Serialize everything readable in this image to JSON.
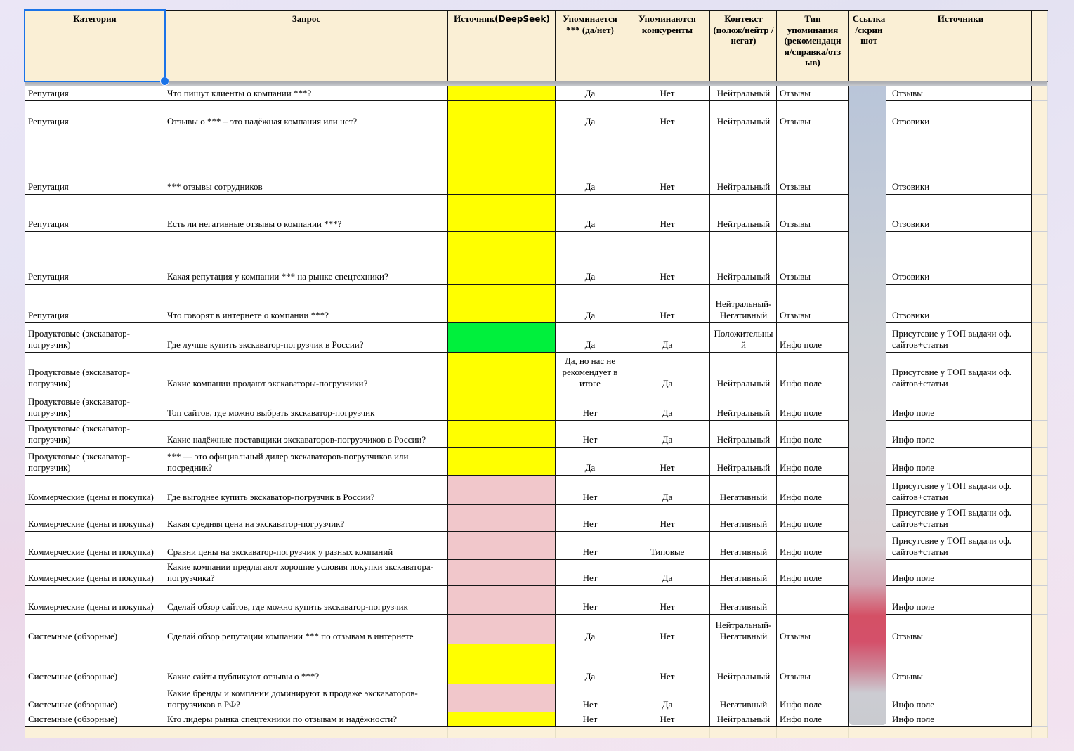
{
  "app": {
    "kind": "spreadsheet-visibility-audit"
  },
  "colors": {
    "selection": "#1a73e8",
    "header_bg": "#FAEFD5",
    "cream": "#FBF1DA",
    "yellow": "#FFFF00",
    "green": "#00F03C",
    "pink": "#F1C7CB",
    "strip_blue": "#B9C5D9",
    "strip_gray": "#D0D3D7",
    "strip_red": "#D45065"
  },
  "table": {
    "headers": [
      {
        "id": "category",
        "label": "Категория"
      },
      {
        "id": "query",
        "label": "Запрос"
      },
      {
        "id": "source",
        "label": "Источник",
        "label_suffix": "(DeepSeek)"
      },
      {
        "id": "mentioned",
        "label": "Упоминается *** (да/нет)"
      },
      {
        "id": "competitors",
        "label": "Упоминаются конкуренты"
      },
      {
        "id": "context",
        "label": "Контекст (полож/нейтр /негат)"
      },
      {
        "id": "mention_type",
        "label": "Тип упоминания (рекомендаци я/справка/отз ыв)"
      },
      {
        "id": "link",
        "label": "Ссылка /скрин шот"
      },
      {
        "id": "sources",
        "label": "Источники"
      }
    ],
    "rows": [
      {
        "category": "Репутация",
        "query": "Что пишут клиенты о компании ***?",
        "source_fill": "yellow",
        "mentioned": "Да",
        "competitors": "Нет",
        "context": "Нейтральный",
        "mention_type": "Отзывы",
        "sources": "Отзывы"
      },
      {
        "category": "Репутация",
        "query": "Отзывы о *** – это надёжная компания или нет?",
        "source_fill": "yellow",
        "mentioned": "Да",
        "competitors": "Нет",
        "context": "Нейтральный",
        "mention_type": "Отзывы",
        "sources": "Отзовики"
      },
      {
        "category": "Репутация",
        "query": "*** отзывы сотрудников",
        "source_fill": "yellow",
        "mentioned": "Да",
        "competitors": "Нет",
        "context": "Нейтральный",
        "mention_type": "Отзывы",
        "sources": "Отзовики"
      },
      {
        "category": "Репутация",
        "query": "Есть ли негативные отзывы о компании ***?",
        "source_fill": "yellow",
        "mentioned": "Да",
        "competitors": "Нет",
        "context": "Нейтральный",
        "mention_type": "Отзывы",
        "sources": "Отзовики"
      },
      {
        "category": "Репутация",
        "query": "Какая репутация у компании *** на рынке спецтехники?",
        "source_fill": "yellow",
        "mentioned": "Да",
        "competitors": "Нет",
        "context": "Нейтральный",
        "mention_type": "Отзывы",
        "sources": "Отзовики"
      },
      {
        "category": "Репутация",
        "query": "Что говорят в интернете о компании ***?",
        "source_fill": "yellow",
        "mentioned": "Да",
        "competitors": "Нет",
        "context": "Нейтральный-Негативный",
        "mention_type": "Отзывы",
        "sources": "Отзовики"
      },
      {
        "category": "Продуктовые (экскаватор-погрузчик)",
        "query": "Где лучше купить экскаватор-погрузчик в России?",
        "source_fill": "green",
        "mentioned": "Да",
        "competitors": "Да",
        "context": "Положительный",
        "mention_type": "Инфо поле",
        "sources": "Присутсвие у ТОП выдачи оф. сайтов+статьи"
      },
      {
        "category": "Продуктовые (экскаватор-погрузчик)",
        "query": "Какие компании продают экскаваторы-погрузчики?",
        "source_fill": "yellow",
        "mentioned": "Да, но нас не рекомендует в итоге",
        "competitors": "Да",
        "context": "Нейтральный",
        "mention_type": "Инфо поле",
        "sources": "Присутсвие у ТОП выдачи оф. сайтов+статьи"
      },
      {
        "category": "Продуктовые (экскаватор-погрузчик)",
        "query": "Топ сайтов, где можно выбрать экскаватор-погрузчик",
        "source_fill": "yellow",
        "mentioned": "Нет",
        "competitors": "Да",
        "context": "Нейтральный",
        "mention_type": "Инфо поле",
        "sources": "Инфо поле"
      },
      {
        "category": "Продуктовые (экскаватор-погрузчик)",
        "query": "Какие надёжные поставщики экскаваторов-погрузчиков в России?",
        "source_fill": "yellow",
        "mentioned": "Нет",
        "competitors": "Да",
        "context": "Нейтральный",
        "mention_type": "Инфо поле",
        "sources": "Инфо поле"
      },
      {
        "category": "Продуктовые (экскаватор-погрузчик)",
        "query": "*** — это официальный дилер экскаваторов-погрузчиков или посредник?",
        "source_fill": "yellow",
        "mentioned": "Да",
        "competitors": "Нет",
        "context": "Нейтральный",
        "mention_type": "Инфо поле",
        "sources": "Инфо поле"
      },
      {
        "category": "Коммерческие (цены и покупка)",
        "query": "Где выгоднее купить экскаватор-погрузчик в России?",
        "source_fill": "pink",
        "mentioned": "Нет",
        "competitors": "Да",
        "context": "Негативный",
        "mention_type": "Инфо поле",
        "sources": "Присутсвие у ТОП выдачи оф. сайтов+статьи"
      },
      {
        "category": "Коммерческие (цены и покупка)",
        "query": "Какая средняя цена на экскаватор-погрузчик?",
        "source_fill": "pink",
        "mentioned": "Нет",
        "competitors": "Нет",
        "context": "Негативный",
        "mention_type": "Инфо поле",
        "sources": "Присутсвие у ТОП выдачи оф. сайтов+статьи"
      },
      {
        "category": "Коммерческие (цены и покупка)",
        "query": "Сравни цены на экскаватор-погрузчик у разных компаний",
        "source_fill": "pink",
        "mentioned": "Нет",
        "competitors": "Типовые",
        "context": "Негативный",
        "mention_type": "Инфо поле",
        "sources": "Присутсвие у ТОП выдачи оф. сайтов+статьи"
      },
      {
        "category": "Коммерческие (цены и покупка)",
        "query": "Какие компании предлагают хорошие условия покупки экскаватора-погрузчика?",
        "source_fill": "pink",
        "mentioned": "Нет",
        "competitors": "Да",
        "context": "Негативный",
        "mention_type": "Инфо поле",
        "sources": "Инфо поле"
      },
      {
        "category": "Коммерческие (цены и покупка)",
        "query": "Сделай обзор сайтов, где можно купить экскаватор-погрузчик",
        "source_fill": "pink",
        "mentioned": "Нет",
        "competitors": "Нет",
        "context": "Негативный",
        "mention_type": "",
        "sources": "Инфо поле"
      },
      {
        "category": "Системные (обзорные)",
        "query": "Сделай обзор репутации компании *** по отзывам в интернете",
        "source_fill": "pink",
        "mentioned": "Да",
        "competitors": "Нет",
        "context": "Нейтральный-Негативный",
        "mention_type": "Отзывы",
        "sources": "Отзывы"
      },
      {
        "category": "Системные (обзорные)",
        "query": "Какие сайты публикуют отзывы о ***?",
        "source_fill": "yellow",
        "mentioned": "Да",
        "competitors": "Нет",
        "context": "Нейтральный",
        "mention_type": "Отзывы",
        "sources": "Отзывы"
      },
      {
        "category": "Системные (обзорные)",
        "query": "Какие бренды и компании доминируют в продаже экскаваторов-погрузчиков в РФ?",
        "source_fill": "pink",
        "mentioned": "Нет",
        "competitors": "Да",
        "context": "Негативный",
        "mention_type": "Инфо поле",
        "sources": "Инфо поле"
      },
      {
        "category": "Системные (обзорные)",
        "query": "Кто лидеры рынка спецтехники по отзывам и надёжности?",
        "source_fill": "yellow",
        "mentioned": "Нет",
        "competitors": "Нет",
        "context": "Нейтральный",
        "mention_type": "Инфо поле",
        "sources": "Инфо поле"
      }
    ]
  }
}
